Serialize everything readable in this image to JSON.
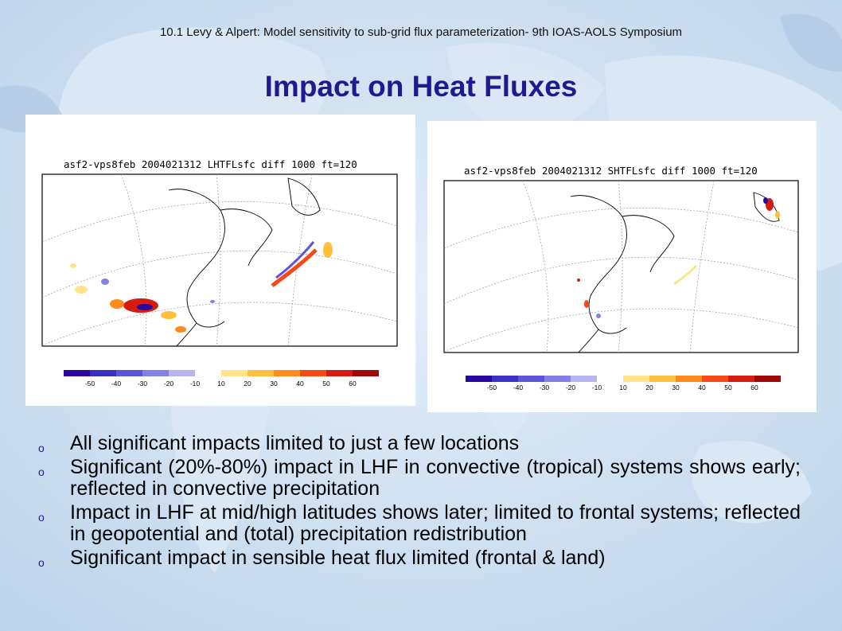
{
  "header": {
    "text": "10.1 Levy & Alpert: Model sensitivity to sub-grid flux parameterization- 9th IOAS-AOLS Symposium"
  },
  "title": "Impact on Heat Fluxes",
  "left_plot": {
    "title": "asf2-vps8feb 2004021312 LHTFLsfc diff 1000 ft=120",
    "colorbar_labels": [
      "-50",
      "-40",
      "-30",
      "-20",
      "-10",
      "10",
      "20",
      "30",
      "40",
      "50",
      "60"
    ],
    "colorbar_colors": [
      "#2a0a9e",
      "#3b30c4",
      "#5b55d8",
      "#8480e6",
      "#b8b4f2",
      "#ffffff",
      "#ffe38a",
      "#ffbf3c",
      "#ff8a1e",
      "#f44a18",
      "#d41c10",
      "#a00808"
    ]
  },
  "right_plot": {
    "title": "asf2-vps8feb 2004021312 SHTFLsfc diff 1000 ft=120",
    "colorbar_labels": [
      "-50",
      "-40",
      "-30",
      "-20",
      "-10",
      "10",
      "20",
      "30",
      "40",
      "50",
      "60"
    ],
    "colorbar_colors": [
      "#2a0a9e",
      "#3b30c4",
      "#5b55d8",
      "#8480e6",
      "#b8b4f2",
      "#ffffff",
      "#ffe38a",
      "#ffbf3c",
      "#ff8a1e",
      "#f44a18",
      "#d41c10",
      "#a00808"
    ]
  },
  "bullets": {
    "marker": "o",
    "items": [
      "All significant impacts limited to just a few locations",
      "Significant (20%-80%) impact in LHF in convective (tropical) systems shows early; reflected in convective precipitation",
      "Impact in LHF at mid/high latitudes shows later; limited to frontal systems; reflected in geopotential and (total) precipitation redistribution",
      "Significant impact in sensible heat flux limited (frontal & land)"
    ]
  }
}
